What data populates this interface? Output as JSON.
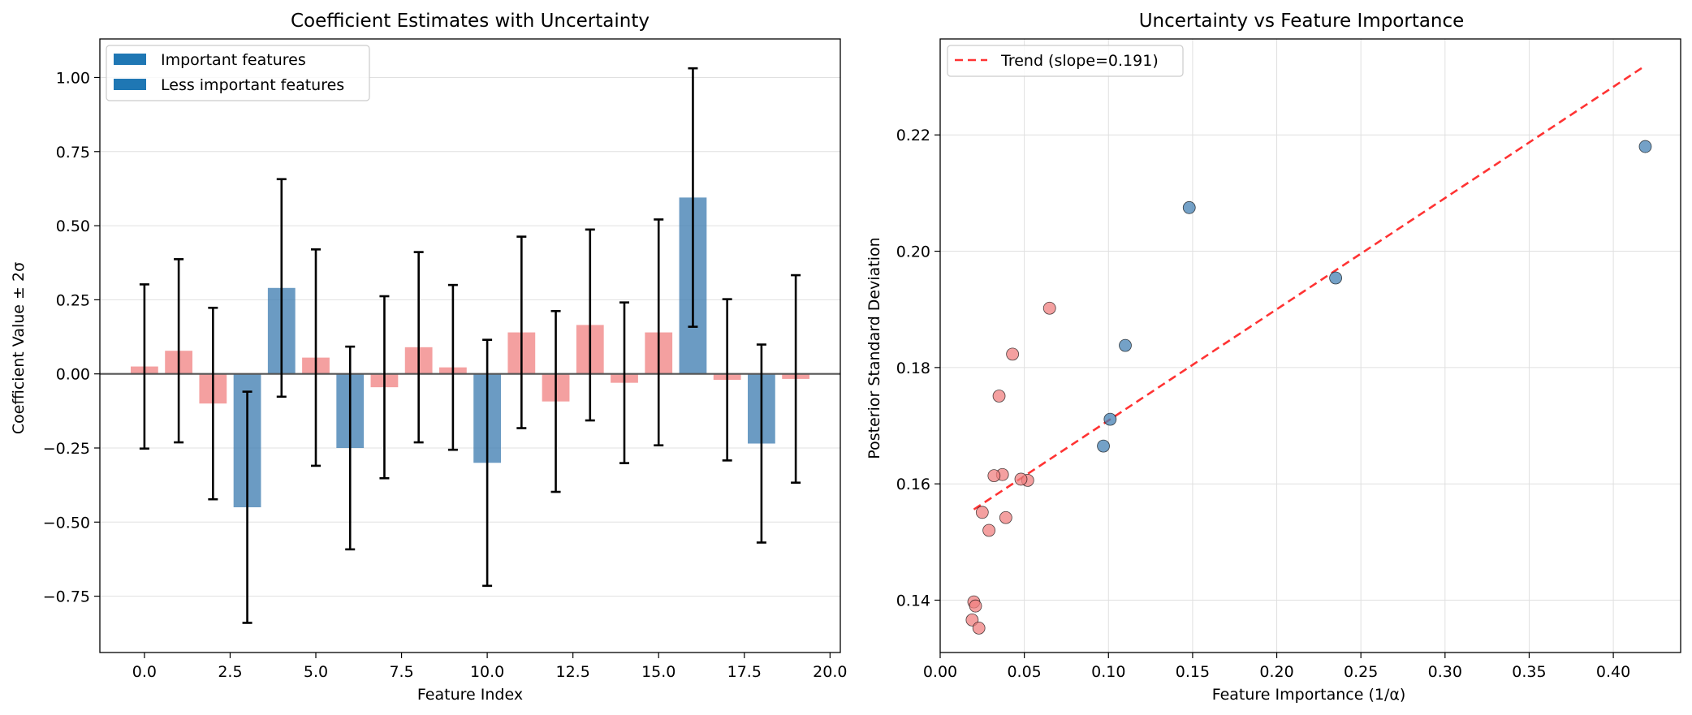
{
  "colors": {
    "important": "#4682b4",
    "less_important": "#f08080",
    "legend_patch": "#1f77b4",
    "trend": "#ff0000",
    "errorbar": "#000000",
    "zero_line": "#555555",
    "grid": "#e0e0e0"
  },
  "chart_data": [
    {
      "type": "bar",
      "title": "Coefficient Estimates with Uncertainty",
      "xlabel": "Feature Index",
      "ylabel": "Coefficient Value ± 2σ",
      "xlim": [
        -1.3,
        20.3
      ],
      "ylim": [
        -0.94,
        1.13
      ],
      "xticks": [
        0,
        2.5,
        5,
        7.5,
        10,
        12.5,
        15,
        17.5,
        20
      ],
      "xtick_labels": [
        "0.0",
        "2.5",
        "5.0",
        "7.5",
        "10.0",
        "12.5",
        "15.0",
        "17.5",
        "20.0"
      ],
      "yticks": [
        -0.75,
        -0.5,
        -0.25,
        0,
        0.25,
        0.5,
        0.75,
        1.0
      ],
      "ytick_labels": [
        "−0.75",
        "−0.50",
        "−0.25",
        "0.00",
        "0.25",
        "0.50",
        "0.75",
        "1.00"
      ],
      "grid": "y",
      "legend": {
        "position": "top-left",
        "entries": [
          "Important features",
          "Less important features"
        ]
      },
      "bars": [
        {
          "x": 0,
          "value": 0.025,
          "err": 0.277,
          "important": false
        },
        {
          "x": 1,
          "value": 0.078,
          "err": 0.309,
          "important": false
        },
        {
          "x": 2,
          "value": -0.1,
          "err": 0.323,
          "important": false
        },
        {
          "x": 3,
          "value": -0.45,
          "err": 0.39,
          "important": true
        },
        {
          "x": 4,
          "value": 0.29,
          "err": 0.367,
          "important": true
        },
        {
          "x": 5,
          "value": 0.055,
          "err": 0.365,
          "important": false
        },
        {
          "x": 6,
          "value": -0.25,
          "err": 0.342,
          "important": true
        },
        {
          "x": 7,
          "value": -0.045,
          "err": 0.307,
          "important": false
        },
        {
          "x": 8,
          "value": 0.09,
          "err": 0.321,
          "important": false
        },
        {
          "x": 9,
          "value": 0.022,
          "err": 0.278,
          "important": false
        },
        {
          "x": 10,
          "value": -0.3,
          "err": 0.415,
          "important": true
        },
        {
          "x": 11,
          "value": 0.14,
          "err": 0.323,
          "important": false
        },
        {
          "x": 12,
          "value": -0.093,
          "err": 0.305,
          "important": false
        },
        {
          "x": 13,
          "value": 0.165,
          "err": 0.322,
          "important": false
        },
        {
          "x": 14,
          "value": -0.03,
          "err": 0.271,
          "important": false
        },
        {
          "x": 15,
          "value": 0.14,
          "err": 0.381,
          "important": false
        },
        {
          "x": 16,
          "value": 0.595,
          "err": 0.436,
          "important": true
        },
        {
          "x": 17,
          "value": -0.02,
          "err": 0.272,
          "important": false
        },
        {
          "x": 18,
          "value": -0.235,
          "err": 0.334,
          "important": true
        },
        {
          "x": 19,
          "value": -0.017,
          "err": 0.35,
          "important": false
        }
      ]
    },
    {
      "type": "scatter",
      "title": "Uncertainty vs Feature Importance",
      "xlabel": "Feature Importance (1/α)",
      "ylabel": "Posterior Standard Deviation",
      "xlim": [
        0.0,
        0.44
      ],
      "ylim": [
        0.131,
        0.2365
      ],
      "xticks": [
        0,
        0.05,
        0.1,
        0.15,
        0.2,
        0.25,
        0.3,
        0.35,
        0.4
      ],
      "xtick_labels": [
        "0.00",
        "0.05",
        "0.10",
        "0.15",
        "0.20",
        "0.25",
        "0.30",
        "0.35",
        "0.40"
      ],
      "yticks": [
        0.14,
        0.16,
        0.18,
        0.2,
        0.22
      ],
      "ytick_labels": [
        "0.14",
        "0.16",
        "0.18",
        "0.20",
        "0.22"
      ],
      "grid": "both",
      "legend": {
        "position": "top-left",
        "entries": [
          "Trend (slope=0.191)"
        ]
      },
      "trend": {
        "x0": 0.02,
        "y0": 0.1556,
        "x1": 0.419,
        "y1": 0.2319,
        "slope": 0.191
      },
      "points": [
        {
          "x": 0.419,
          "y": 0.218,
          "important": true
        },
        {
          "x": 0.235,
          "y": 0.1954,
          "important": true
        },
        {
          "x": 0.148,
          "y": 0.2075,
          "important": true
        },
        {
          "x": 0.11,
          "y": 0.1838,
          "important": true
        },
        {
          "x": 0.101,
          "y": 0.1711,
          "important": true
        },
        {
          "x": 0.097,
          "y": 0.1665,
          "important": true
        },
        {
          "x": 0.065,
          "y": 0.1902,
          "important": false
        },
        {
          "x": 0.043,
          "y": 0.1823,
          "important": false
        },
        {
          "x": 0.035,
          "y": 0.1751,
          "important": false
        },
        {
          "x": 0.052,
          "y": 0.1606,
          "important": false
        },
        {
          "x": 0.048,
          "y": 0.1608,
          "important": false
        },
        {
          "x": 0.037,
          "y": 0.1616,
          "important": false
        },
        {
          "x": 0.032,
          "y": 0.1614,
          "important": false
        },
        {
          "x": 0.039,
          "y": 0.1542,
          "important": false
        },
        {
          "x": 0.025,
          "y": 0.1551,
          "important": false
        },
        {
          "x": 0.029,
          "y": 0.152,
          "important": false
        },
        {
          "x": 0.02,
          "y": 0.1397,
          "important": false
        },
        {
          "x": 0.021,
          "y": 0.139,
          "important": false
        },
        {
          "x": 0.019,
          "y": 0.1366,
          "important": false
        },
        {
          "x": 0.023,
          "y": 0.1352,
          "important": false
        }
      ]
    }
  ]
}
